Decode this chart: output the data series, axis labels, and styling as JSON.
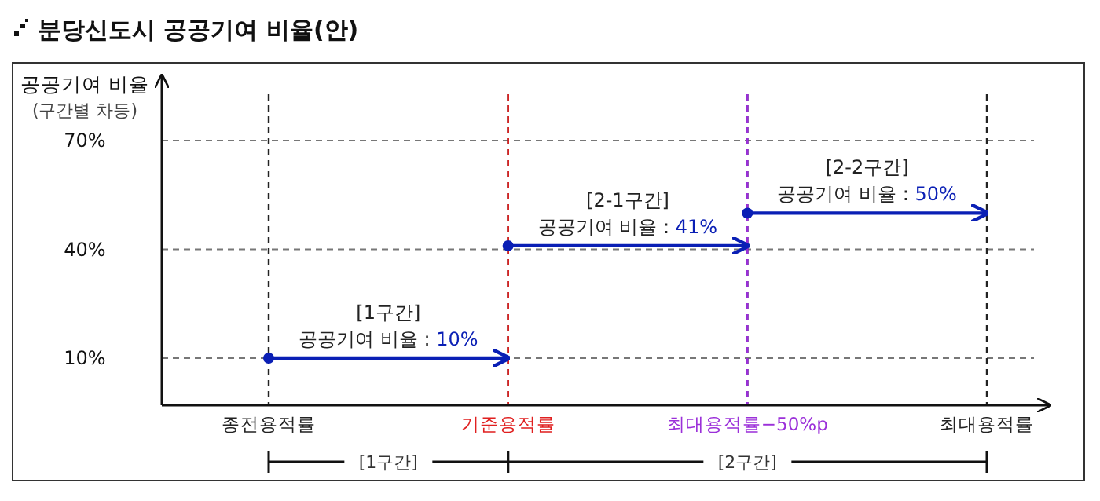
{
  "chart_data": {
    "type": "line",
    "title": "분당신도시  공공기여  비율(안)",
    "ylabel": "공공기여 비율\n(구간별 차등)",
    "categories": [
      "종전용적률",
      "기준용적률",
      "최대용적률−50%p",
      "최대용적률"
    ],
    "ylim": [
      -3,
      88
    ],
    "yticks": [
      {
        "value": 10,
        "label": "10%"
      },
      {
        "value": 40,
        "label": "40%"
      },
      {
        "value": 70,
        "label": "70%"
      }
    ],
    "grid": true,
    "marker": "circle",
    "series": [
      {
        "color": "#0a1fb5",
        "x": [
          "종전용적률",
          "기준용적률"
        ],
        "values": [
          10,
          10
        ]
      },
      {
        "color": "#0a1fb5",
        "x": [
          "기준용적률",
          "최대용적률−50%p"
        ],
        "values": [
          41,
          41
        ]
      },
      {
        "color": "#0a1fb5",
        "x": [
          "최대용적률−50%p",
          "최대용적률"
        ],
        "values": [
          50,
          50
        ]
      }
    ],
    "annotations": [
      {
        "text": "[1구간]\n공공기여 비율 : 10%",
        "x": "종전용적률",
        "y": 10
      },
      {
        "text": "[2-1구간]\n공공기여 비율 : 41%",
        "x": "기준용적률",
        "y": 41
      },
      {
        "text": "[2-2구간]\n공공기여 비율 : 50%",
        "x": "최대용적률−50%p",
        "y": 50
      },
      "[1구간]",
      "[2구간]"
    ],
    "ref_lines": [
      {
        "axis": "x",
        "value": "기준용적률",
        "color": "#e02020",
        "line_style": "dashed"
      },
      {
        "axis": "x",
        "value": "최대용적률−50%p",
        "color": "#9b30d9",
        "line_style": "dashed"
      }
    ]
  }
}
